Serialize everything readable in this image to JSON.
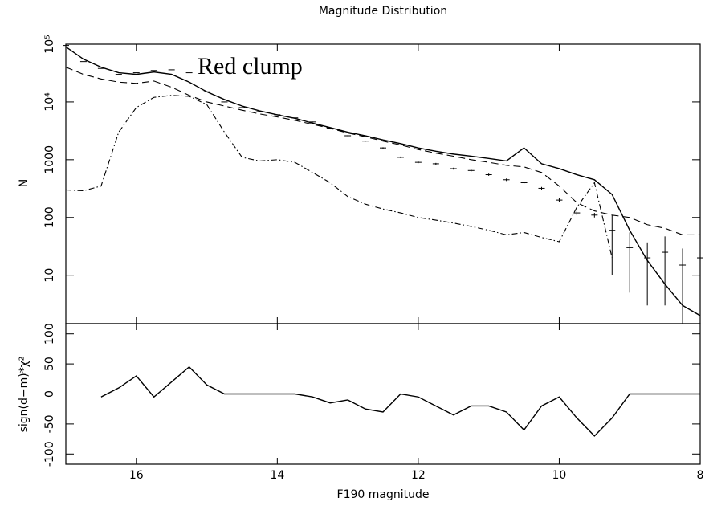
{
  "chart_data": [
    {
      "type": "line",
      "title": "Magnitude Distribution",
      "y_label": "N",
      "annotation": "Red clump",
      "log_y": true,
      "x": [
        17,
        16.75,
        16.5,
        16.25,
        16,
        15.75,
        15.5,
        15.25,
        15,
        14.75,
        14.5,
        14.25,
        14,
        13.75,
        13.5,
        13.25,
        13,
        12.75,
        12.5,
        12.25,
        12,
        11.75,
        11.5,
        11.25,
        11,
        10.75,
        10.5,
        10.25,
        10,
        9.75,
        9.5,
        9.25,
        9,
        8.75,
        8.5,
        8.25,
        8
      ],
      "xlim": [
        17,
        8
      ],
      "xticks": [
        16,
        14,
        12,
        10,
        8
      ],
      "ylim": [
        1.45,
        100000
      ],
      "yticks": [
        {
          "value": 10,
          "label": "10"
        },
        {
          "value": 100,
          "label": "100"
        },
        {
          "value": 1000,
          "label": "1000"
        },
        {
          "value": 10000,
          "label": "10⁴"
        },
        {
          "value": 100000,
          "label": "10⁵"
        }
      ],
      "series": [
        {
          "style": "solid",
          "color": "#000000",
          "values": [
            90000,
            55000,
            40000,
            32000,
            30000,
            33000,
            30000,
            22000,
            15000,
            11000,
            8500,
            7000,
            6000,
            5200,
            4300,
            3600,
            3000,
            2600,
            2200,
            1900,
            1600,
            1400,
            1250,
            1150,
            1050,
            950,
            1600,
            850,
            700,
            550,
            450,
            250,
            60,
            18,
            7,
            3,
            2
          ]
        },
        {
          "style": "dashed",
          "color": "#000000",
          "values": [
            40000,
            30000,
            25000,
            22000,
            21000,
            23000,
            18000,
            13000,
            10000,
            8500,
            7200,
            6200,
            5500,
            4800,
            4100,
            3500,
            2900,
            2500,
            2100,
            1800,
            1500,
            1300,
            1150,
            1000,
            900,
            800,
            750,
            600,
            350,
            180,
            130,
            110,
            100,
            75,
            65,
            50,
            50
          ]
        },
        {
          "style": "dashdot",
          "color": "#000000",
          "values": [
            300,
            290,
            350,
            3000,
            8000,
            12000,
            13000,
            12500,
            9000,
            3000,
            1100,
            950,
            1000,
            900,
            600,
            400,
            230,
            170,
            140,
            120,
            100,
            90,
            80,
            70,
            60,
            50,
            55,
            45,
            38,
            150,
            400,
            20,
            null,
            null,
            null,
            null,
            null
          ]
        },
        {
          "style": "errorbar",
          "color": "#000000",
          "values": [
            95000,
            50000,
            38000,
            30000,
            32000,
            35000,
            36000,
            32000,
            15000,
            10000,
            8000,
            6800,
            6000,
            5300,
            4500,
            3500,
            2600,
            2100,
            1600,
            1100,
            900,
            850,
            700,
            650,
            550,
            450,
            400,
            320,
            200,
            120,
            110,
            60,
            30,
            20,
            25,
            15,
            20
          ],
          "errors": [
            300,
            220,
            190,
            170,
            180,
            190,
            190,
            180,
            120,
            100,
            90,
            80,
            80,
            75,
            70,
            60,
            50,
            45,
            40,
            35,
            30,
            30,
            28,
            27,
            25,
            22,
            20,
            18,
            15,
            11,
            10,
            50,
            25,
            17,
            22,
            14,
            18
          ]
        }
      ]
    },
    {
      "type": "line",
      "x_label": "F190 magnitude",
      "y_label": "sign(d−m)*χ²",
      "x": [
        17,
        16.75,
        16.5,
        16.25,
        16,
        15.75,
        15.5,
        15.25,
        15,
        14.75,
        14.5,
        14.25,
        14,
        13.75,
        13.5,
        13.25,
        13,
        12.75,
        12.5,
        12.25,
        12,
        11.75,
        11.5,
        11.25,
        11,
        10.75,
        10.5,
        10.25,
        10,
        9.75,
        9.5,
        9.25,
        9,
        8.75,
        8.5,
        8.25,
        8
      ],
      "xlim": [
        17,
        8
      ],
      "xticks": [
        16,
        14,
        12,
        10,
        8
      ],
      "ylim": [
        -117,
        117
      ],
      "yticks": [
        -100,
        -50,
        0,
        50,
        100
      ],
      "series": [
        {
          "style": "solid",
          "color": "#000000",
          "values": [
            null,
            null,
            -5,
            10,
            30,
            -5,
            20,
            45,
            15,
            0,
            0,
            0,
            0,
            0,
            -5,
            -15,
            -10,
            -25,
            -30,
            0,
            -5,
            -20,
            -35,
            -20,
            -20,
            -30,
            -60,
            -20,
            -5,
            -40,
            -70,
            -40,
            0,
            0,
            0,
            0,
            0
          ]
        }
      ]
    }
  ]
}
